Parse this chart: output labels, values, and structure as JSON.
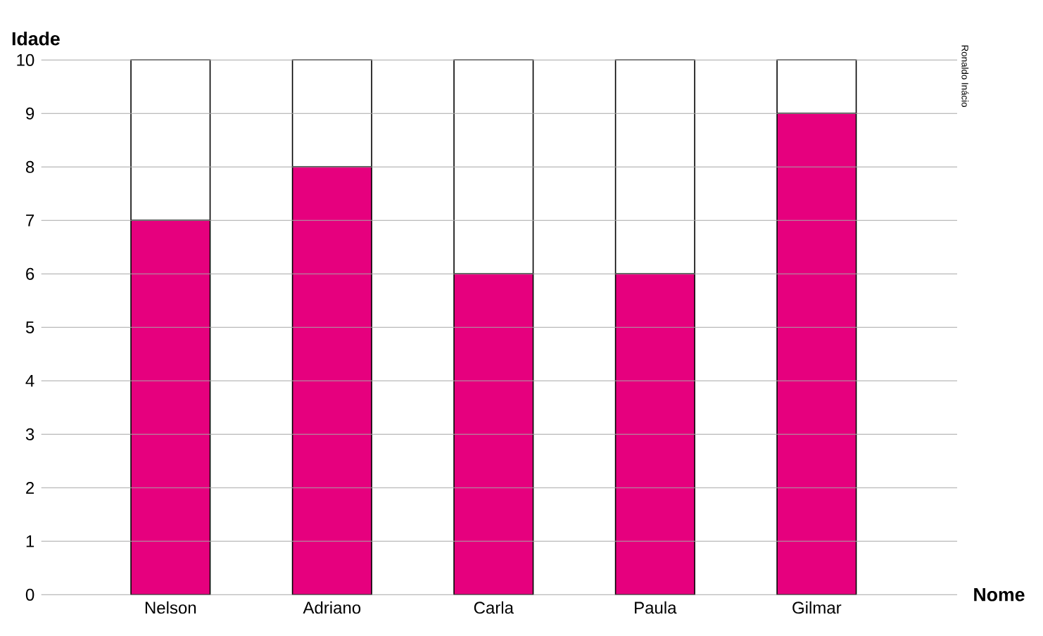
{
  "chart_data": {
    "type": "bar",
    "stacked": true,
    "xlabel": "Nome",
    "ylabel": "Idade",
    "categories": [
      "Nelson",
      "Adriano",
      "Carla",
      "Paula",
      "Gilmar"
    ],
    "series": [
      {
        "color": "#e6007e",
        "values": [
          7,
          8,
          6,
          6,
          9
        ]
      },
      {
        "color": "#ffffff",
        "values": [
          3,
          2,
          4,
          4,
          1
        ]
      }
    ],
    "ylim": [
      0,
      10
    ],
    "yticks": [
      0,
      1,
      2,
      3,
      4,
      5,
      6,
      7,
      8,
      9,
      10
    ],
    "grid": "y",
    "annotations": [
      "Ronaldo Inácio"
    ]
  }
}
